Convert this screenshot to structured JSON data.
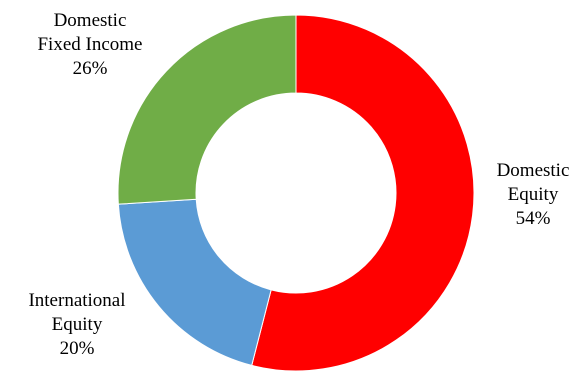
{
  "chart_data": {
    "type": "pie",
    "donut": true,
    "start_angle_deg": 0,
    "direction": "clockwise",
    "legend": "none",
    "slices": [
      {
        "category_lines": [
          "Domestic",
          "Equity"
        ],
        "value": 54,
        "value_label": "54%",
        "color": "#ff0000"
      },
      {
        "category_lines": [
          "International",
          "Equity"
        ],
        "value": 20,
        "value_label": "20%",
        "color": "#5b9bd5"
      },
      {
        "category_lines": [
          "Domestic",
          "Fixed Income"
        ],
        "value": 26,
        "value_label": "26%",
        "color": "#70ad47"
      }
    ]
  }
}
